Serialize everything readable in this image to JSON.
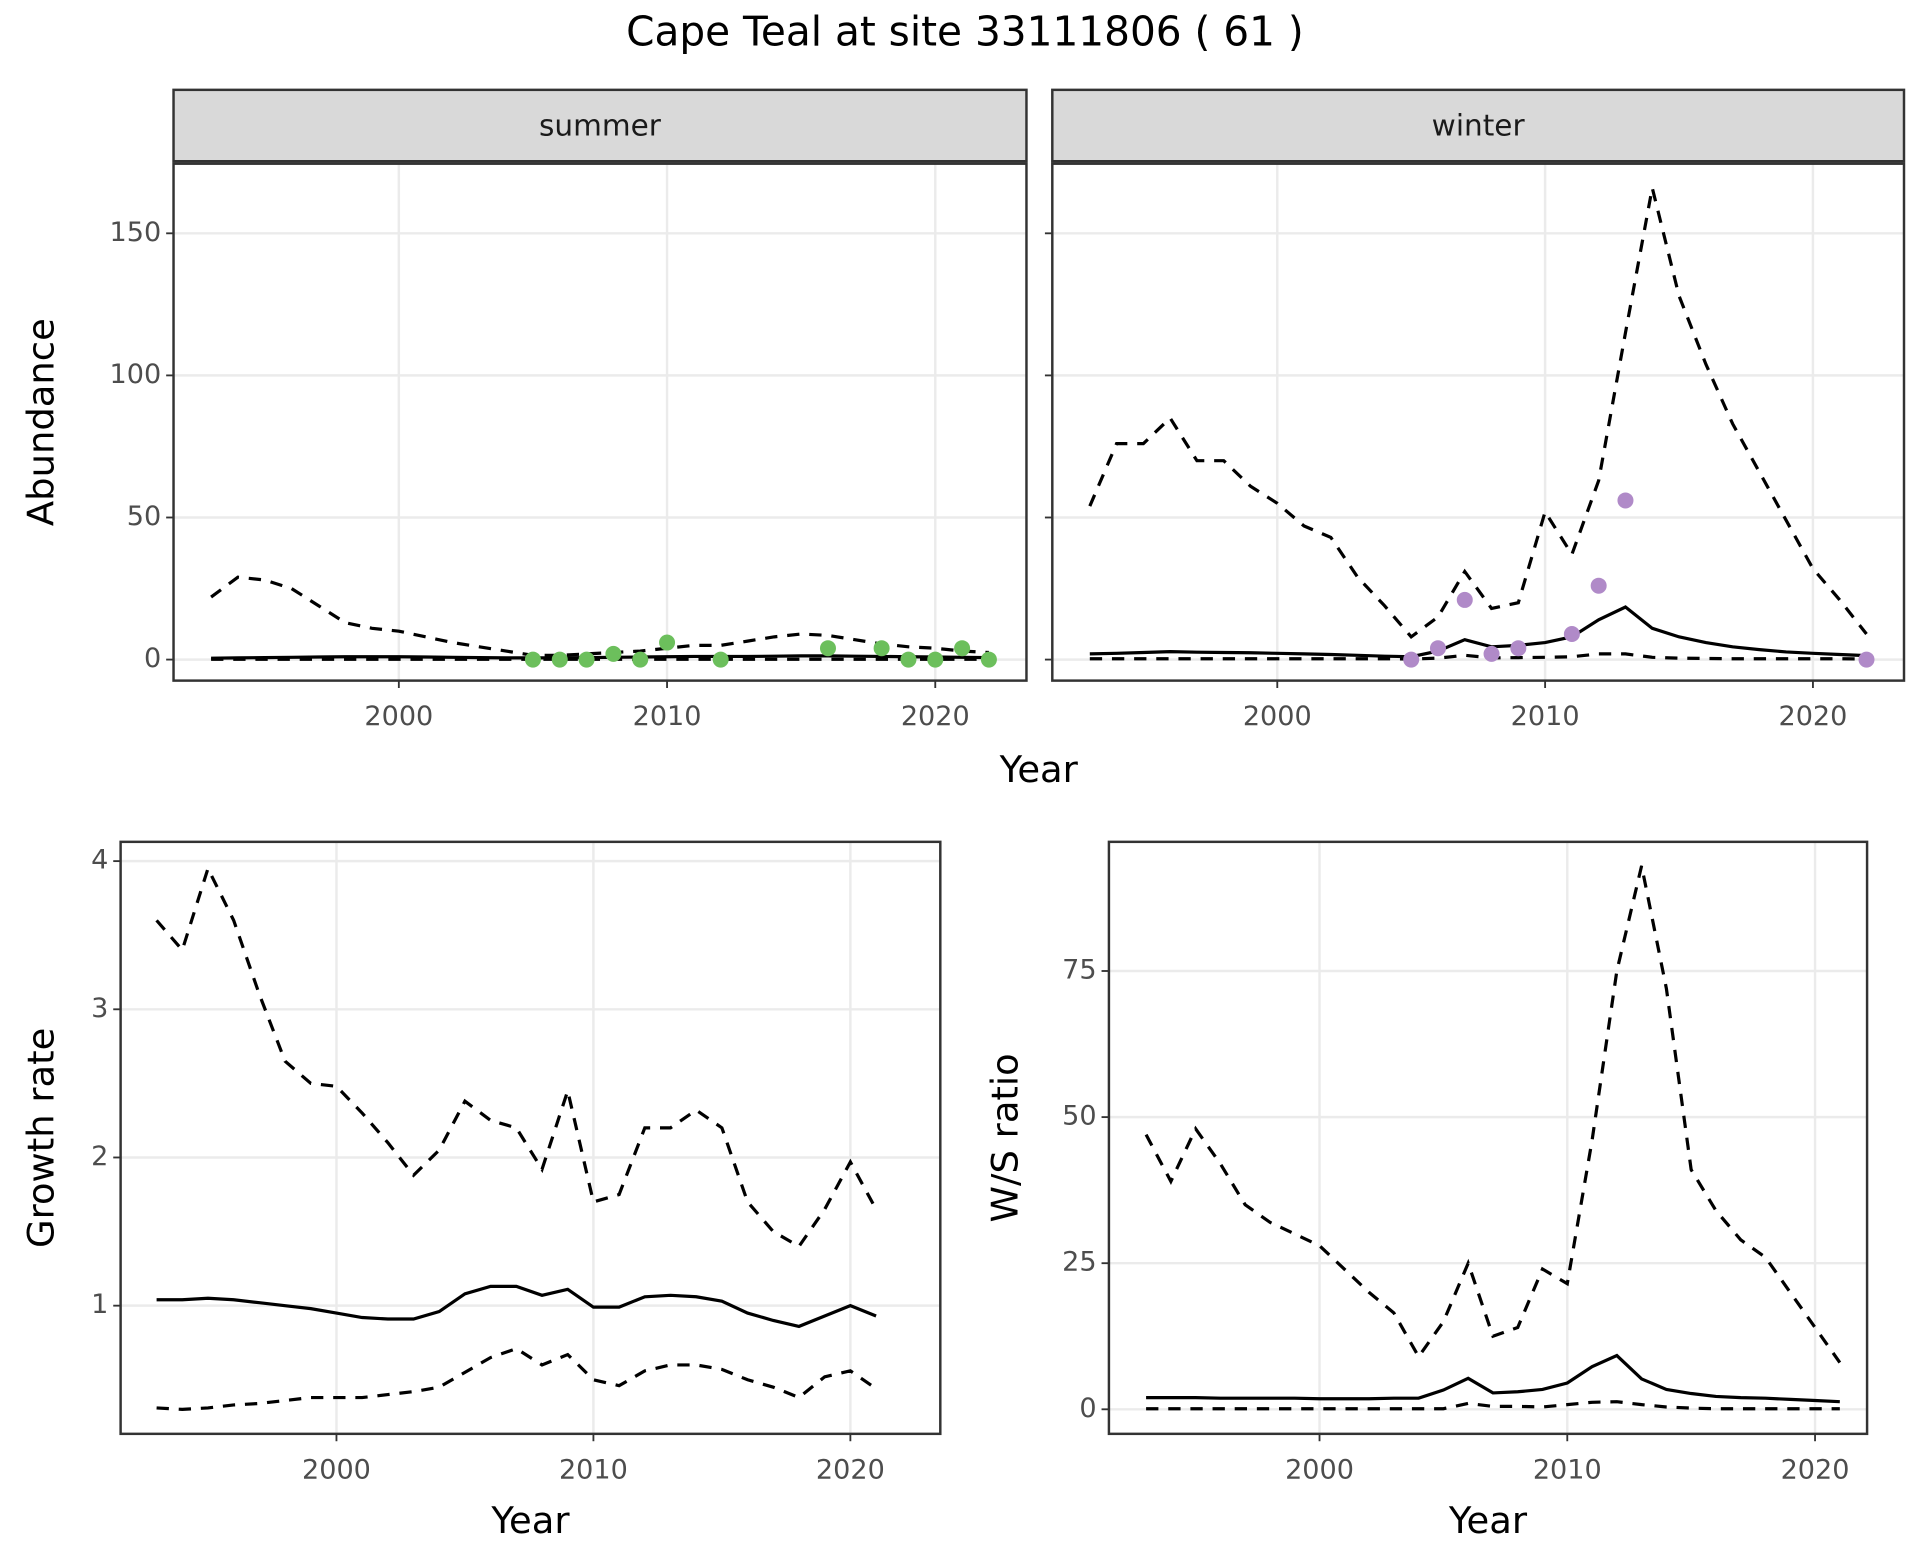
{
  "title": "Cape Teal at site 33111806 ( 61 )",
  "chart_data": [
    {
      "type": "line",
      "facet": "summer",
      "xlabel": "Year",
      "ylabel": "Abundance",
      "xlim": [
        1991.6,
        2023.4
      ],
      "xticks": [
        2000,
        2010,
        2020
      ],
      "ylim": [
        -7.4,
        174.5
      ],
      "yticks": [
        0,
        50,
        100,
        150
      ],
      "grid": true,
      "show_ytick_labels": true,
      "x": [
        1993,
        1994,
        1995,
        1996,
        1997,
        1998,
        1999,
        2000,
        2001,
        2002,
        2003,
        2004,
        2005,
        2006,
        2007,
        2008,
        2009,
        2010,
        2011,
        2012,
        2013,
        2014,
        2015,
        2016,
        2017,
        2018,
        2019,
        2020,
        2021,
        2022
      ],
      "series": [
        {
          "color": "#000000",
          "line_style": "dashed",
          "values": [
            22,
            29,
            28,
            25,
            19,
            13,
            11,
            10,
            8,
            6,
            4.5,
            3,
            1.5,
            1.5,
            2,
            2.5,
            3,
            4,
            5,
            5,
            6.5,
            8,
            9,
            8.5,
            7,
            5.5,
            4.5,
            4,
            3,
            2.5
          ]
        },
        {
          "color": "#000000",
          "line_style": "solid",
          "values": [
            0.5,
            0.6,
            0.7,
            0.8,
            0.9,
            1,
            1,
            1,
            0.9,
            0.8,
            0.7,
            0.6,
            0.6,
            0.6,
            0.7,
            0.8,
            0.9,
            1,
            1.1,
            1.1,
            1.1,
            1.2,
            1.3,
            1.3,
            1.2,
            1.1,
            1,
            0.9,
            0.8,
            0.7
          ]
        },
        {
          "color": "#000000",
          "line_style": "dashed",
          "values": [
            0.1,
            0.1,
            0.1,
            0.1,
            0.1,
            0.1,
            0.1,
            0.1,
            0.1,
            0.1,
            0.1,
            0.1,
            0.1,
            0.1,
            0.1,
            0.1,
            0.1,
            0.1,
            0.1,
            0.1,
            0.1,
            0.1,
            0.1,
            0.1,
            0.1,
            0.1,
            0.1,
            0.1,
            0.1,
            0.1
          ]
        }
      ],
      "points": {
        "color": "#6cbf5c",
        "x": [
          2005,
          2006,
          2007,
          2008,
          2009,
          2010,
          2012,
          2016,
          2018,
          2019,
          2020,
          2021,
          2022
        ],
        "values": [
          0,
          0,
          0,
          2,
          0,
          6,
          0,
          4,
          4,
          0,
          0,
          4,
          0
        ]
      }
    },
    {
      "type": "line",
      "facet": "winter",
      "xlim": [
        1991.6,
        2023.4
      ],
      "xticks": [
        2000,
        2010,
        2020
      ],
      "ylim": [
        -7.4,
        174.5
      ],
      "yticks": [
        0,
        50,
        100,
        150
      ],
      "grid": true,
      "show_ytick_labels": false,
      "x": [
        1993,
        1994,
        1995,
        1996,
        1997,
        1998,
        1999,
        2000,
        2001,
        2002,
        2003,
        2004,
        2005,
        2006,
        2007,
        2008,
        2009,
        2010,
        2011,
        2012,
        2013,
        2014,
        2015,
        2016,
        2017,
        2018,
        2019,
        2020,
        2021,
        2022
      ],
      "series": [
        {
          "color": "#000000",
          "line_style": "dashed",
          "values": [
            54,
            76,
            76,
            85,
            70,
            70,
            61,
            55,
            47,
            43,
            29,
            19,
            8,
            15,
            31,
            18,
            20,
            52,
            37,
            63,
            115,
            166,
            128,
            104,
            83,
            66,
            49,
            32,
            21,
            9
          ]
        },
        {
          "color": "#000000",
          "line_style": "solid",
          "values": [
            2,
            2.2,
            2.5,
            2.8,
            2.6,
            2.5,
            2.4,
            2.2,
            2,
            1.8,
            1.5,
            1.2,
            1,
            3,
            7,
            4.5,
            5,
            6,
            8,
            14,
            18.5,
            11,
            8,
            6,
            4.5,
            3.5,
            2.7,
            2.2,
            1.8,
            1.4
          ]
        },
        {
          "color": "#000000",
          "line_style": "dashed",
          "values": [
            0.3,
            0.3,
            0.3,
            0.3,
            0.3,
            0.3,
            0.3,
            0.3,
            0.3,
            0.3,
            0.3,
            0.3,
            0.2,
            0.5,
            1.5,
            0.6,
            0.7,
            0.8,
            1,
            2,
            2,
            0.8,
            0.5,
            0.4,
            0.3,
            0.3,
            0.3,
            0.3,
            0.3,
            0.2
          ]
        }
      ],
      "points": {
        "color": "#b08ac8",
        "x": [
          2005,
          2006,
          2007,
          2008,
          2009,
          2011,
          2012,
          2013,
          2022
        ],
        "values": [
          0,
          4,
          21,
          2,
          4,
          9,
          26,
          56,
          0
        ]
      }
    },
    {
      "type": "line",
      "xlabel": "Year",
      "ylabel": "Growth rate",
      "xlim": [
        1991.6,
        2023.5
      ],
      "xticks": [
        2000,
        2010,
        2020
      ],
      "ylim": [
        0.135,
        4.13
      ],
      "yticks": [
        1,
        2,
        3,
        4
      ],
      "grid": true,
      "show_ytick_labels": true,
      "x": [
        1993,
        1994,
        1995,
        1996,
        1997,
        1998,
        1999,
        2000,
        2001,
        2002,
        2003,
        2004,
        2005,
        2006,
        2007,
        2008,
        2009,
        2010,
        2011,
        2012,
        2013,
        2014,
        2015,
        2016,
        2017,
        2018,
        2019,
        2020,
        2021
      ],
      "series": [
        {
          "color": "#000000",
          "line_style": "dashed",
          "values": [
            3.6,
            3.4,
            3.95,
            3.6,
            3.1,
            2.65,
            2.5,
            2.48,
            2.3,
            2.1,
            1.88,
            2.05,
            2.38,
            2.25,
            2.2,
            1.92,
            2.45,
            1.7,
            1.75,
            2.2,
            2.2,
            2.32,
            2.2,
            1.7,
            1.5,
            1.4,
            1.65,
            1.97,
            1.65
          ]
        },
        {
          "color": "#000000",
          "line_style": "solid",
          "values": [
            1.04,
            1.04,
            1.05,
            1.04,
            1.02,
            1.0,
            0.98,
            0.95,
            0.92,
            0.91,
            0.91,
            0.96,
            1.08,
            1.13,
            1.13,
            1.07,
            1.11,
            0.99,
            0.99,
            1.06,
            1.07,
            1.06,
            1.03,
            0.95,
            0.9,
            0.86,
            0.93,
            1.0,
            0.93
          ]
        },
        {
          "color": "#000000",
          "line_style": "dashed",
          "values": [
            0.31,
            0.3,
            0.31,
            0.33,
            0.34,
            0.36,
            0.38,
            0.38,
            0.38,
            0.4,
            0.42,
            0.45,
            0.55,
            0.65,
            0.71,
            0.6,
            0.67,
            0.5,
            0.46,
            0.56,
            0.6,
            0.6,
            0.57,
            0.5,
            0.45,
            0.38,
            0.52,
            0.56,
            0.44
          ]
        }
      ]
    },
    {
      "type": "line",
      "xlabel": "Year",
      "ylabel": "W/S ratio",
      "xlim": [
        1991.5,
        2022.1
      ],
      "xticks": [
        2000,
        2010,
        2020
      ],
      "ylim": [
        -4.2,
        97.1
      ],
      "yticks": [
        0,
        25,
        50,
        75
      ],
      "grid": true,
      "show_ytick_labels": true,
      "x": [
        1993,
        1994,
        1995,
        1996,
        1997,
        1998,
        1999,
        2000,
        2001,
        2002,
        2003,
        2004,
        2005,
        2006,
        2007,
        2008,
        2009,
        2010,
        2011,
        2012,
        2013,
        2014,
        2015,
        2016,
        2017,
        2018,
        2019,
        2020,
        2021
      ],
      "series": [
        {
          "color": "#000000",
          "line_style": "dashed",
          "values": [
            47,
            39,
            48,
            42,
            35,
            32,
            30,
            28,
            24,
            20,
            16.5,
            9,
            15,
            25,
            12.5,
            14,
            24,
            21.5,
            46,
            75,
            93,
            72,
            41,
            34,
            29,
            26,
            20,
            14,
            8
          ]
        },
        {
          "color": "#000000",
          "line_style": "solid",
          "values": [
            2,
            2,
            2,
            1.9,
            1.9,
            1.9,
            1.9,
            1.8,
            1.8,
            1.8,
            1.9,
            1.9,
            3.3,
            5.3,
            2.8,
            3,
            3.4,
            4.5,
            7.3,
            9.2,
            5.2,
            3.4,
            2.7,
            2.2,
            2,
            1.9,
            1.7,
            1.5,
            1.3
          ]
        },
        {
          "color": "#000000",
          "line_style": "dashed",
          "values": [
            0.1,
            0.1,
            0.1,
            0.1,
            0.1,
            0.1,
            0.1,
            0.1,
            0.1,
            0.1,
            0.1,
            0.1,
            0.1,
            1,
            0.5,
            0.5,
            0.4,
            0.8,
            1.2,
            1.3,
            0.8,
            0.4,
            0.2,
            0.1,
            0.1,
            0.1,
            0.1,
            0.1,
            0.1
          ]
        }
      ]
    }
  ]
}
